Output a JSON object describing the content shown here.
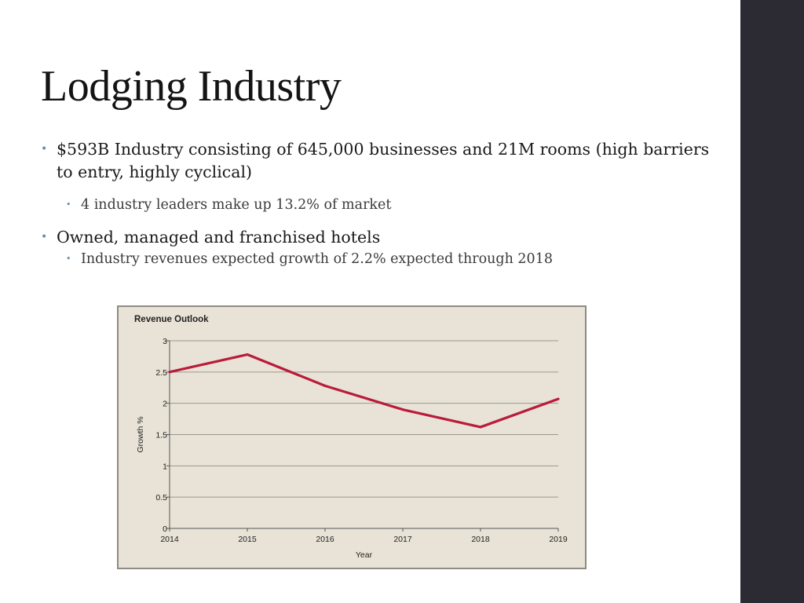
{
  "slide": {
    "title": "Lodging Industry",
    "bullets": [
      {
        "text": "$593B Industry consisting of 645,000 businesses and 21M rooms (high barriers to entry, highly cyclical)",
        "sub": [
          "4 industry leaders make up 13.2% of market"
        ]
      },
      {
        "text": "Owned, managed and franchised hotels",
        "sub": [
          "Industry revenues expected growth of 2.2% expected through 2018"
        ]
      }
    ]
  },
  "colors": {
    "line": "#b91c3a",
    "sidebar": "#2c2b34",
    "chart_bg": "#e8e3d6",
    "bullet_dot": "#6b8da6"
  },
  "chart_data": {
    "type": "line",
    "title": "Revenue Outlook",
    "xlabel": "Year",
    "ylabel": "Growth %",
    "categories": [
      "2014",
      "2015",
      "2016",
      "2017",
      "2018",
      "2019"
    ],
    "series": [
      {
        "values": [
          2.5,
          2.78,
          2.28,
          1.9,
          1.62,
          2.07
        ]
      }
    ],
    "ylim": [
      0,
      3
    ],
    "yticks": [
      "0",
      "0.5",
      "1",
      "1.5",
      "2",
      "2.5",
      "3"
    ],
    "grid": true
  }
}
